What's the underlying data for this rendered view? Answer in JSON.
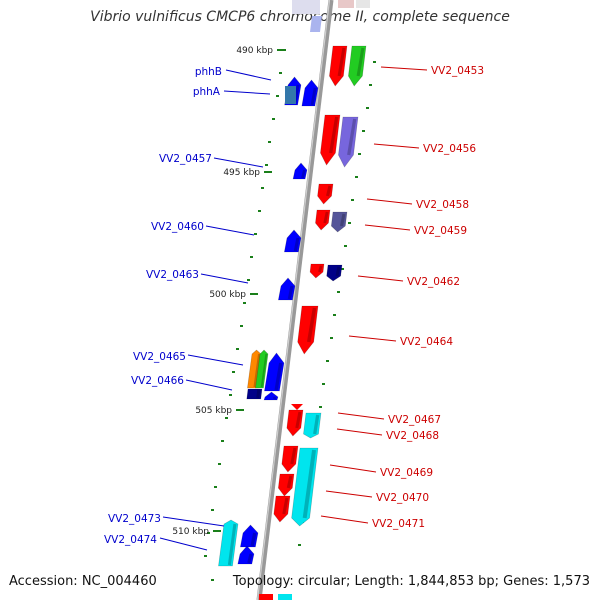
{
  "title": "Vibrio vulnificus CMCP6 chromosome II, complete sequence",
  "footer": {
    "accession": "Accession: NC_004460",
    "topology": "Topology: circular; Length: 1,844,853 bp; Genes: 1,573"
  },
  "scale_ticks": [
    {
      "kbp": 490,
      "label": "490 kbp"
    },
    {
      "kbp": 495,
      "label": "495 kbp"
    },
    {
      "kbp": 500,
      "label": "500 kbp"
    },
    {
      "kbp": 505,
      "label": "505 kbp"
    },
    {
      "kbp": 510,
      "label": "510 kbp"
    }
  ],
  "colors": {
    "forward": "#ff0000",
    "reverse": "#0000ff",
    "forward_label": "#cc0000",
    "reverse_label": "#0000cc",
    "backbone": "#999999",
    "tick": "#1a7f1a",
    "green": "#22cc22",
    "purple": "#7766dd",
    "navy": "#000088",
    "cyan": "#00e5ee",
    "orange": "#ff8800",
    "steel": "#3377aa"
  },
  "labels_left": [
    {
      "text": "phhB"
    },
    {
      "text": "phhA"
    },
    {
      "text": "VV2_0457"
    },
    {
      "text": "VV2_0460"
    },
    {
      "text": "VV2_0463"
    },
    {
      "text": "VV2_0465"
    },
    {
      "text": "VV2_0466"
    },
    {
      "text": "VV2_0473"
    },
    {
      "text": "VV2_0474"
    }
  ],
  "labels_right": [
    {
      "text": "VV2_0453"
    },
    {
      "text": "VV2_0456"
    },
    {
      "text": "VV2_0458"
    },
    {
      "text": "VV2_0459"
    },
    {
      "text": "VV2_0462"
    },
    {
      "text": "VV2_0464"
    },
    {
      "text": "VV2_0467"
    },
    {
      "text": "VV2_0468"
    },
    {
      "text": "VV2_0469"
    },
    {
      "text": "VV2_0470"
    },
    {
      "text": "VV2_0471"
    }
  ]
}
